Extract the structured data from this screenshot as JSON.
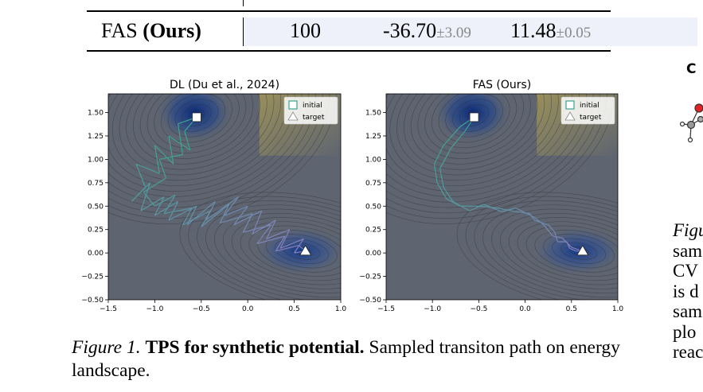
{
  "table": {
    "method_name": "FAS",
    "method_suffix": "(Ours)",
    "col1": "100",
    "col2_value": "-36.70",
    "col2_pm": "±3.09",
    "col3_value": "11.48",
    "col3_pm": "±0.05"
  },
  "plots": [
    {
      "title": "DL (Du et al., 2024)",
      "legend": [
        "initial",
        "target"
      ],
      "xticks": [
        "−1.5",
        "−1.0",
        "−0.5",
        "0.0",
        "0.5",
        "1.0"
      ],
      "yticks": [
        "−0.50",
        "−0.25",
        "0.00",
        "0.25",
        "0.50",
        "0.75",
        "1.00",
        "1.25",
        "1.50"
      ]
    },
    {
      "title": "FAS (Ours)",
      "legend": [
        "initial",
        "target"
      ],
      "xticks": [
        "−1.5",
        "−1.0",
        "−0.5",
        "0.0",
        "0.5",
        "1.0"
      ],
      "yticks": [
        "−0.50",
        "−0.25",
        "0.00",
        "0.25",
        "0.50",
        "0.75",
        "1.00",
        "1.25",
        "1.50"
      ]
    }
  ],
  "panel_c_label": "C",
  "caption": {
    "label": "Figure 1.",
    "bold": "TPS for synthetic potential.",
    "rest": "Sampled transiton path on energy landscape."
  },
  "side_text_lines": [
    "Figu",
    "sam",
    "CV",
    "is d",
    "sam",
    "plo",
    "reac"
  ],
  "colors": {
    "highlight": "#eef0fa",
    "path_teal": "#3aa58e",
    "path_purple": "#8e7cc3",
    "marker": "#ffffff"
  },
  "chart_data": [
    {
      "type": "line",
      "title": "DL (Du et al., 2024)",
      "xlim": [
        -1.5,
        1.0
      ],
      "ylim": [
        -0.5,
        1.7
      ],
      "xticks": [
        -1.5,
        -1.0,
        -0.5,
        0.0,
        0.5,
        1.0
      ],
      "yticks": [
        -0.5,
        -0.25,
        0.0,
        0.25,
        0.5,
        0.75,
        1.0,
        1.25,
        1.5
      ],
      "legend_position": "top-right",
      "series": [
        {
          "name": "initial",
          "marker": "square",
          "x": [
            -0.55
          ],
          "y": [
            1.45
          ]
        },
        {
          "name": "target",
          "marker": "triangle",
          "x": [
            0.62
          ],
          "y": [
            0.02
          ]
        }
      ],
      "paths": [
        {
          "x": [
            -0.55,
            -0.68,
            -0.62,
            -0.85,
            -0.8,
            -1.0,
            -0.95,
            -1.2,
            -1.1,
            -1.25,
            -1.05,
            -1.15,
            -0.9,
            -1.0,
            -0.75,
            -0.85,
            -0.55,
            -0.65,
            -0.35,
            -0.45,
            -0.1,
            -0.25,
            0.0,
            -0.15,
            0.15,
            0.05,
            0.3,
            0.2,
            0.45,
            0.35,
            0.6,
            0.5,
            0.62
          ],
          "y": [
            1.45,
            1.3,
            1.1,
            1.25,
            0.95,
            1.15,
            0.85,
            0.95,
            0.7,
            0.55,
            0.75,
            0.45,
            0.6,
            0.4,
            0.55,
            0.35,
            0.5,
            0.3,
            0.55,
            0.35,
            0.6,
            0.4,
            0.5,
            0.3,
            0.45,
            0.2,
            0.35,
            0.15,
            0.25,
            0.05,
            0.15,
            0.0,
            0.02
          ]
        },
        {
          "x": [
            -0.55,
            -0.75,
            -0.7,
            -0.95,
            -0.88,
            -1.12,
            -1.0,
            -0.78,
            -0.9,
            -0.6,
            -0.7,
            -0.4,
            -0.5,
            -0.2,
            -0.3,
            0.05,
            -0.05,
            0.25,
            0.1,
            0.4,
            0.3,
            0.55,
            0.62
          ],
          "y": [
            1.45,
            1.38,
            1.05,
            1.0,
            0.8,
            0.65,
            0.5,
            0.62,
            0.42,
            0.48,
            0.3,
            0.45,
            0.28,
            0.52,
            0.32,
            0.42,
            0.22,
            0.3,
            0.1,
            0.18,
            0.02,
            0.08,
            0.02
          ]
        }
      ]
    },
    {
      "type": "line",
      "title": "FAS (Ours)",
      "xlim": [
        -1.5,
        1.0
      ],
      "ylim": [
        -0.5,
        1.7
      ],
      "xticks": [
        -1.5,
        -1.0,
        -0.5,
        0.0,
        0.5,
        1.0
      ],
      "yticks": [
        -0.5,
        -0.25,
        0.0,
        0.25,
        0.5,
        0.75,
        1.0,
        1.25,
        1.5
      ],
      "legend_position": "top-right",
      "series": [
        {
          "name": "initial",
          "marker": "square",
          "x": [
            -0.55
          ],
          "y": [
            1.45
          ]
        },
        {
          "name": "target",
          "marker": "triangle",
          "x": [
            0.62
          ],
          "y": [
            0.02
          ]
        }
      ],
      "paths": [
        {
          "x": [
            -0.55,
            -0.7,
            -0.88,
            -0.98,
            -0.95,
            -0.85,
            -0.7,
            -0.5,
            -0.3,
            -0.15,
            0.05,
            0.1,
            0.25,
            0.32,
            0.35,
            0.45,
            0.48,
            0.55,
            0.62
          ],
          "y": [
            1.45,
            1.35,
            1.15,
            0.95,
            0.75,
            0.58,
            0.5,
            0.5,
            0.48,
            0.45,
            0.42,
            0.35,
            0.3,
            0.22,
            0.12,
            0.12,
            0.05,
            0.02,
            0.02
          ]
        },
        {
          "x": [
            -0.55,
            -0.65,
            -0.8,
            -0.92,
            -0.88,
            -0.78,
            -0.6,
            -0.45,
            -0.25,
            -0.1,
            0.1,
            0.2,
            0.3,
            0.4,
            0.5,
            0.62
          ],
          "y": [
            1.45,
            1.3,
            1.12,
            0.9,
            0.7,
            0.55,
            0.45,
            0.52,
            0.44,
            0.48,
            0.38,
            0.3,
            0.18,
            0.16,
            0.06,
            0.02
          ]
        }
      ]
    }
  ]
}
